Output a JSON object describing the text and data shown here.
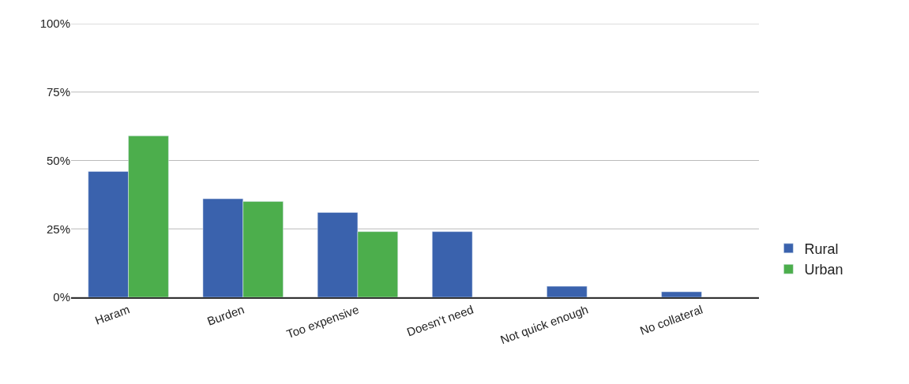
{
  "chart_data": {
    "type": "bar",
    "categories": [
      "Haram",
      "Burden",
      "Too expensive",
      "Doesn’t need",
      "Not quick enough",
      "No collateral"
    ],
    "series": [
      {
        "name": "Rural",
        "color": "#3a62ad",
        "values": [
          46,
          36,
          31,
          24,
          4,
          2
        ]
      },
      {
        "name": "Urban",
        "color": "#4cae4c",
        "values": [
          59,
          35,
          24,
          null,
          null,
          null
        ]
      }
    ],
    "ylim": [
      0,
      100
    ],
    "yticks": [
      {
        "value": 0,
        "label": "0%"
      },
      {
        "value": 25,
        "label": "25%"
      },
      {
        "value": 50,
        "label": "50%"
      },
      {
        "value": 75,
        "label": "75%"
      },
      {
        "value": 100,
        "label": "100%"
      }
    ],
    "grid": "y",
    "legend": "right"
  }
}
